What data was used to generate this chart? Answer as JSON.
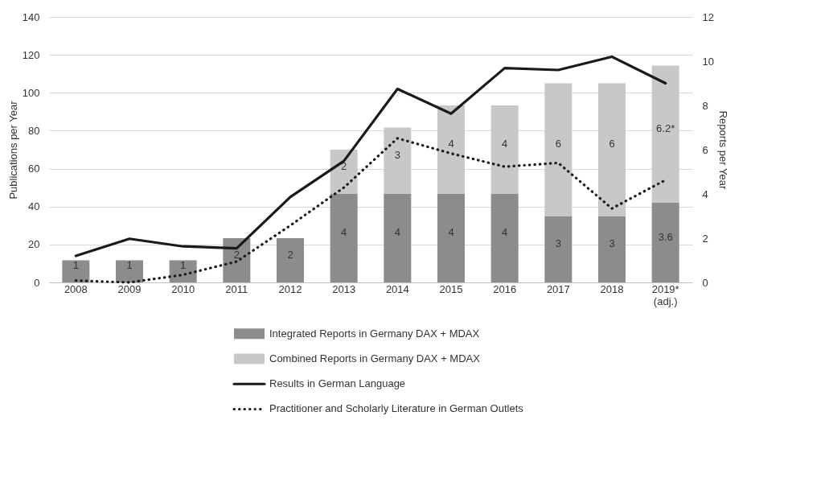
{
  "chart_data": {
    "type": "bar",
    "stacked": true,
    "categories": [
      "2008",
      "2009",
      "2010",
      "2011",
      "2012",
      "2013",
      "2014",
      "2015",
      "2016",
      "2017",
      "2018",
      "2019* (adj.)"
    ],
    "ylabel": "Publications per Year",
    "y2label": "Reports per Year",
    "ylim": [
      0,
      140
    ],
    "yticks": [
      0,
      20,
      40,
      60,
      80,
      100,
      120,
      140
    ],
    "y2lim": [
      0,
      12
    ],
    "y2ticks": [
      0,
      2,
      4,
      6,
      8,
      10,
      12
    ],
    "grid": "y",
    "legend": "bottom",
    "series": [
      {
        "name": "Integrated Reports in Germany DAX + MDAX",
        "type": "bar",
        "axis": "y2",
        "color": "#8c8c8c",
        "values": [
          1,
          1,
          1,
          2,
          2,
          4,
          4,
          4,
          4,
          3,
          3,
          3.6
        ],
        "value_labels": [
          "1",
          "1",
          "1",
          "2",
          "2",
          "4",
          "4",
          "4",
          "4",
          "3",
          "3",
          "3.6"
        ]
      },
      {
        "name": "Combined Reports in Germany DAX + MDAX",
        "type": "bar",
        "axis": "y2",
        "color": "#c8c8c8",
        "values": [
          0,
          0,
          0,
          0,
          0,
          2,
          3,
          4,
          4,
          6,
          6,
          6.2
        ],
        "value_labels": [
          null,
          null,
          null,
          null,
          null,
          "2",
          "3",
          "4",
          "4",
          "6",
          "6",
          "6.2*"
        ]
      },
      {
        "name": "Results in German Language",
        "type": "line",
        "color": "#1a1a1a",
        "line_style": "solid",
        "values": [
          14,
          23,
          19,
          18,
          45,
          64,
          102,
          89,
          113,
          112,
          119,
          105
        ]
      },
      {
        "name": "Practitioner and Scholarly Literature in German Outlets",
        "type": "line",
        "color": "#1a1a1a",
        "line_style": "dotted",
        "values": [
          1,
          0,
          4,
          11,
          30,
          50,
          76,
          68,
          61,
          63,
          39,
          54
        ]
      }
    ]
  }
}
